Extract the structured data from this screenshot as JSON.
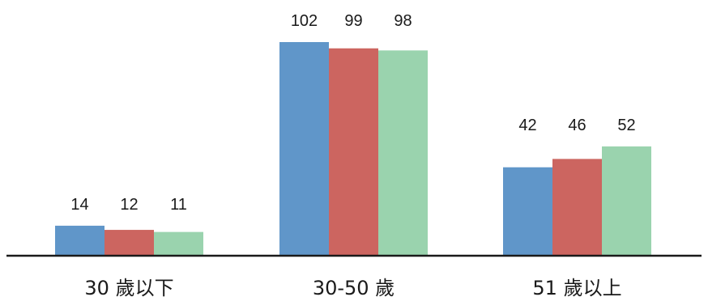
{
  "chart_data": {
    "type": "bar",
    "categories": [
      "30 歲以下",
      "30-50 歲",
      "51 歲以上"
    ],
    "series": [
      {
        "values": [
          14,
          102,
          42
        ],
        "color": "#6096C9"
      },
      {
        "values": [
          12,
          99,
          46
        ],
        "color": "#CC6560"
      },
      {
        "values": [
          11,
          98,
          52
        ],
        "color": "#9AD3AE"
      }
    ],
    "ylim": [
      0,
      102
    ],
    "grid": false,
    "legend": "none",
    "title": "",
    "xlabel": "",
    "ylabel": ""
  }
}
